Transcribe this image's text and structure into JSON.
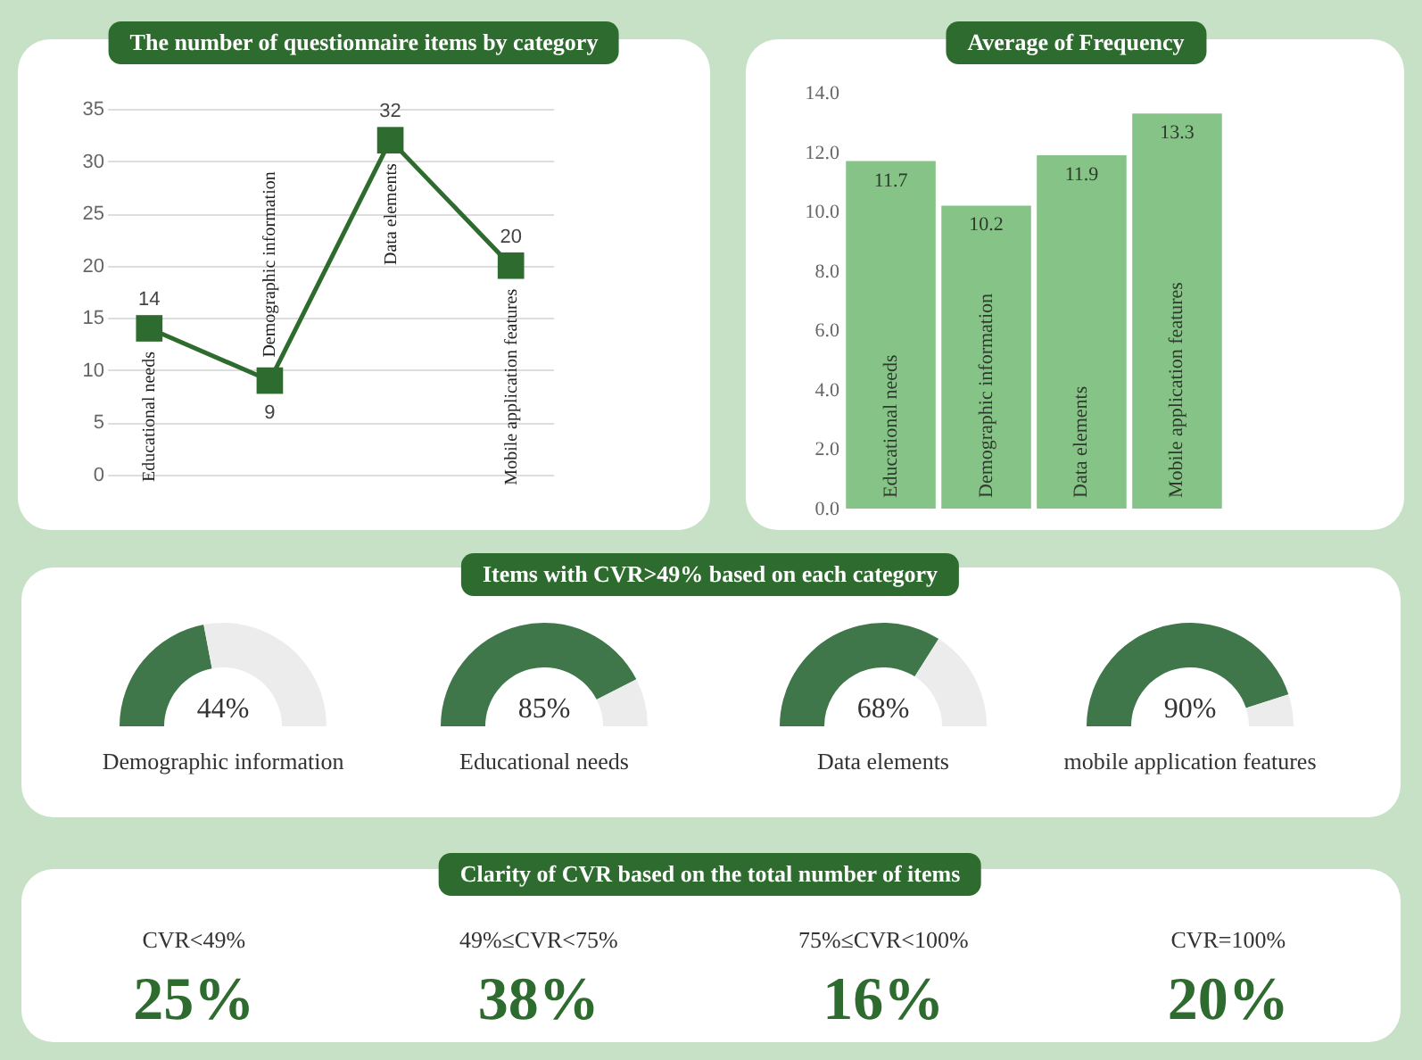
{
  "chart_data": [
    {
      "type": "line",
      "title": "The number of questionnaire items by category",
      "categories": [
        "Educational needs",
        "Demographic information",
        "Data elements",
        "Mobile application features"
      ],
      "values": [
        14,
        9,
        32,
        20
      ],
      "color": "#2e6b2e",
      "ylim": [
        0,
        35
      ],
      "yticks": [
        0,
        5,
        10,
        15,
        20,
        25,
        30,
        35
      ],
      "grid": "y",
      "marker": "square",
      "data_labels": true
    },
    {
      "type": "bar",
      "title": "Average of Frequency",
      "categories": [
        "Educational needs",
        "Demographic information",
        "Data elements",
        "Mobile application features"
      ],
      "values": [
        11.7,
        10.2,
        11.9,
        13.3
      ],
      "color": "#86c386",
      "ylim": [
        0,
        14
      ],
      "yticks": [
        {
          "value": 0,
          "label": "0.0"
        },
        {
          "value": 2,
          "label": "2.0"
        },
        {
          "value": 4,
          "label": "4.0"
        },
        {
          "value": 6,
          "label": "6.0"
        },
        {
          "value": 8,
          "label": "8.0"
        },
        {
          "value": 10,
          "label": "10.0"
        },
        {
          "value": 12,
          "label": "12.0"
        },
        {
          "value": 14,
          "label": "14.0"
        }
      ],
      "data_labels": true
    },
    {
      "type": "other",
      "title": "Items with CVR>49% based on each category"
    },
    {
      "type": "donut",
      "title": "Demographic information",
      "categories": [
        null,
        null
      ],
      "values": [
        44,
        56
      ],
      "colors": [
        "#3f774a",
        "#ececec"
      ],
      "value_labels": [
        "44%",
        null
      ]
    },
    {
      "type": "donut",
      "title": "Educational needs",
      "categories": [
        null,
        null
      ],
      "values": [
        85,
        15
      ],
      "colors": [
        "#3f774a",
        "#ececec"
      ],
      "value_labels": [
        "85%",
        null
      ]
    },
    {
      "type": "donut",
      "title": "Data elements",
      "categories": [
        null,
        null
      ],
      "values": [
        68,
        32
      ],
      "colors": [
        "#3f774a",
        "#ececec"
      ],
      "value_labels": [
        "68%",
        null
      ]
    },
    {
      "type": "donut",
      "title": "mobile application features",
      "categories": [
        null,
        null
      ],
      "values": [
        90,
        10
      ],
      "colors": [
        "#3f774a",
        "#ececec"
      ],
      "value_labels": [
        "90%",
        null
      ]
    },
    {
      "type": "other",
      "title": "Clarity of CVR based on the total number of items",
      "categories": [
        "CVR<49%",
        "49%≤CVR<75%",
        "75%≤CVR<100%",
        "CVR=100%"
      ],
      "values": [
        25,
        38,
        16,
        20
      ],
      "value_labels": [
        "25%",
        "38%",
        "16%",
        "20%"
      ]
    }
  ]
}
